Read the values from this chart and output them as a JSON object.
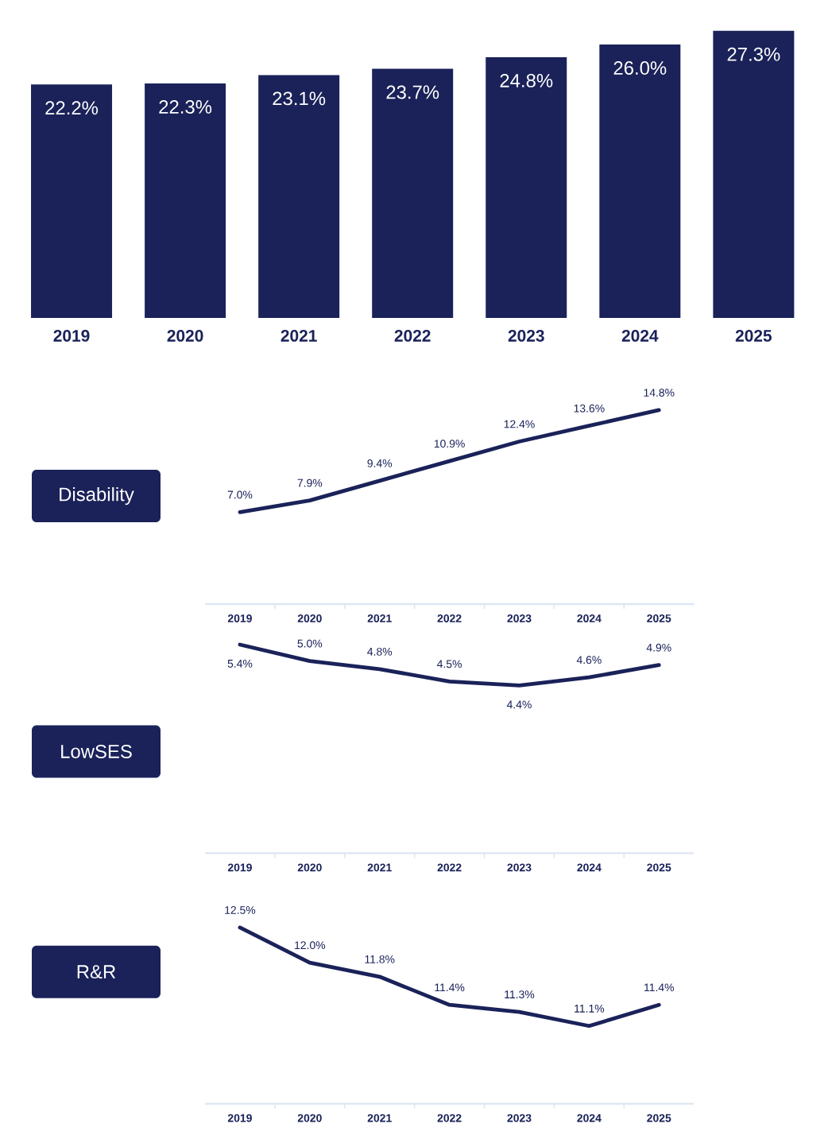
{
  "chart_data": [
    {
      "type": "bar",
      "categories": [
        "2019",
        "2020",
        "2021",
        "2022",
        "2023",
        "2024",
        "2025"
      ],
      "values": [
        22.2,
        22.3,
        23.1,
        23.7,
        24.8,
        26.0,
        27.3
      ],
      "value_labels": [
        "22.2%",
        "22.3%",
        "23.1%",
        "23.7%",
        "24.8%",
        "26.0%",
        "27.3%"
      ],
      "color": "#1a2259",
      "tick_labels": "x"
    },
    {
      "type": "line",
      "title": "Disability",
      "categories": [
        "2019",
        "2020",
        "2021",
        "2022",
        "2023",
        "2024",
        "2025"
      ],
      "values": [
        7.0,
        7.9,
        9.4,
        10.9,
        12.4,
        13.6,
        14.8
      ],
      "value_labels": [
        "7.0%",
        "7.9%",
        "9.4%",
        "10.9%",
        "12.4%",
        "13.6%",
        "14.8%"
      ],
      "color": "#1a2259",
      "tick_labels": "x"
    },
    {
      "type": "line",
      "title": "LowSES",
      "categories": [
        "2019",
        "2020",
        "2021",
        "2022",
        "2023",
        "2024",
        "2025"
      ],
      "values": [
        5.4,
        5.0,
        4.8,
        4.5,
        4.4,
        4.6,
        4.9
      ],
      "value_labels": [
        "5.4%",
        "5.0%",
        "4.8%",
        "4.5%",
        "4.4%",
        "4.6%",
        "4.9%"
      ],
      "color": "#1a2259",
      "tick_labels": "x"
    },
    {
      "type": "line",
      "title": "R&R",
      "categories": [
        "2019",
        "2020",
        "2021",
        "2022",
        "2023",
        "2024",
        "2025"
      ],
      "values": [
        12.5,
        12.0,
        11.8,
        11.4,
        11.3,
        11.1,
        11.4
      ],
      "value_labels": [
        "12.5%",
        "12.0%",
        "11.8%",
        "11.4%",
        "11.3%",
        "11.1%",
        "11.4%"
      ],
      "color": "#1a2259",
      "tick_labels": "x"
    }
  ]
}
